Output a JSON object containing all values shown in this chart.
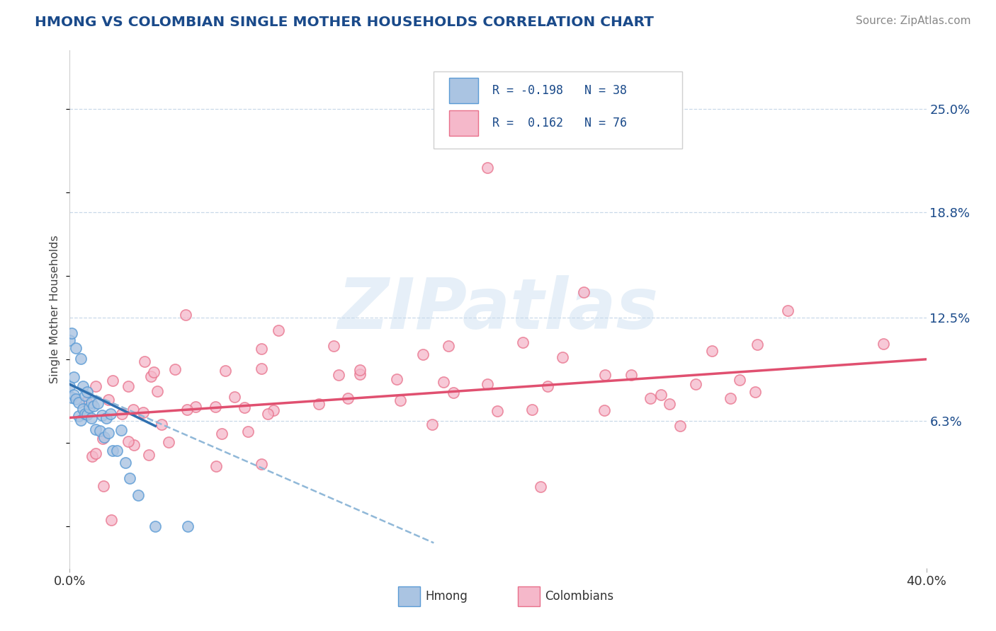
{
  "title": "HMONG VS COLOMBIAN SINGLE MOTHER HOUSEHOLDS CORRELATION CHART",
  "source": "Source: ZipAtlas.com",
  "ylabel": "Single Mother Households",
  "xlim": [
    0.0,
    0.4
  ],
  "ylim": [
    -0.025,
    0.285
  ],
  "xticklabels": [
    "0.0%",
    "40.0%"
  ],
  "ytick_positions": [
    0.063,
    0.125,
    0.188,
    0.25
  ],
  "ytick_labels": [
    "6.3%",
    "12.5%",
    "18.8%",
    "25.0%"
  ],
  "watermark_text": "ZIPatlas",
  "hmong_color": "#aac4e2",
  "hmong_edge_color": "#5b9bd5",
  "colombian_color": "#f5b8ca",
  "colombian_edge_color": "#e8708a",
  "hmong_line_color": "#3070b0",
  "hmong_line_dash_color": "#90b8d8",
  "colombian_line_color": "#e05070",
  "background_color": "#ffffff",
  "grid_color": "#c8d8e8",
  "title_color": "#1a4a8a",
  "source_color": "#888888",
  "legend_R1": "R = -0.198",
  "legend_N1": "N = 38",
  "legend_R2": "R =  0.162",
  "legend_N2": "N = 76",
  "marker_size": 120
}
